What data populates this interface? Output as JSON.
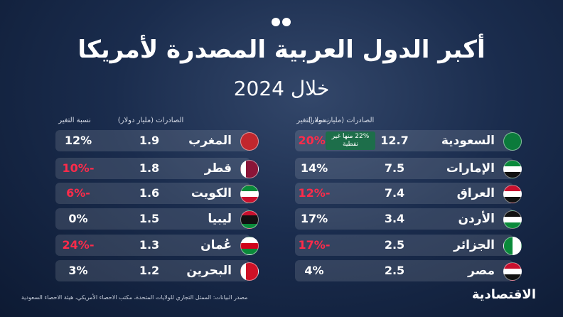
{
  "header": {
    "title": "أكبر الدول العربية المصدرة لأمريكا",
    "subtitle": "خلال 2024"
  },
  "panels": [
    {
      "columns": {
        "exports": "الصادرات (مليار دولار)",
        "change": "نسبة التغير"
      },
      "rows": [
        {
          "name": "السعودية",
          "exports": 12.7,
          "change": "-20%",
          "note": "22% منها غير نفطية"
        },
        {
          "name": "الإمارات",
          "exports": 7.5,
          "change": "14%"
        },
        {
          "name": "العراق",
          "exports": 7.4,
          "change": "-12%"
        },
        {
          "name": "الأردن",
          "exports": 3.4,
          "change": "17%"
        },
        {
          "name": "الجزائر",
          "exports": 2.5,
          "change": "-17%"
        },
        {
          "name": "مصر",
          "exports": 2.5,
          "change": "4%"
        }
      ]
    },
    {
      "columns": {
        "exports": "الصادرات (مليار دولار)",
        "change": "نسبة التغير"
      },
      "rows": [
        {
          "name": "المغرب",
          "exports": 1.9,
          "change": "12%"
        },
        {
          "name": "قطر",
          "exports": 1.8,
          "change": "-10%"
        },
        {
          "name": "الكويت",
          "exports": 1.6,
          "change": "-6%"
        },
        {
          "name": "ليبيا",
          "exports": 1.5,
          "change": "0%"
        },
        {
          "name": "عُمان",
          "exports": 1.3,
          "change": "-24%"
        },
        {
          "name": "البحرين",
          "exports": 1.2,
          "change": "3%"
        }
      ]
    }
  ],
  "footer": {
    "source": "مصدر البيانات: الممثل التجاري للولايات المتحدة، مكتب الاحصاء الأمريكي، هيئة الاحصاء السعودية",
    "logo": "الاقتصادية"
  }
}
